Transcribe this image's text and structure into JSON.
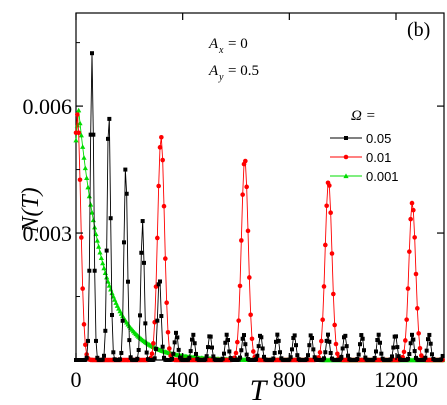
{
  "chart_data": {
    "type": "line",
    "panel_label": "(b)",
    "xlabel": "T",
    "ylabel": "N(T)",
    "xlim": [
      0,
      1380
    ],
    "ylim": [
      0,
      0.0082
    ],
    "x_ticks": [
      0,
      400,
      800,
      1200
    ],
    "x_tick_labels": [
      "0",
      "400",
      "800",
      "1200"
    ],
    "y_ticks": [
      0.003,
      0.006
    ],
    "y_tick_labels": [
      "0.003",
      "0.006"
    ],
    "grid": false,
    "legend_title": "Ω =",
    "legend_placement": "right",
    "annotations": {
      "ax_main": "A",
      "ax_sub": "x",
      "ax_val": "= 0",
      "ay_main": "A",
      "ay_sub": "y",
      "ay_val": "= 0.5"
    },
    "series": [
      {
        "name": "0.05",
        "color": "#000000",
        "marker": "square",
        "period": 63.2,
        "first_peak": 60,
        "peak_start": 0.00725,
        "peak_decay": 0.00132,
        "width": 9,
        "sample_step": 5,
        "x_max": 1375
      },
      {
        "name": "0.01",
        "color": "#ff0000",
        "marker": "circle",
        "period": 314,
        "first_peak": 5,
        "peak_start": 0.0058,
        "peak_decay": 0.00052,
        "width": 18,
        "sample_step": 5,
        "x_max": 1375
      },
      {
        "name": "0.001",
        "color": "#00dd00",
        "marker": "triangle",
        "peak_x": 10,
        "peak_value": 0.0059,
        "decay_tau": 95,
        "sample_step": 5,
        "x_max": 1375
      }
    ]
  }
}
